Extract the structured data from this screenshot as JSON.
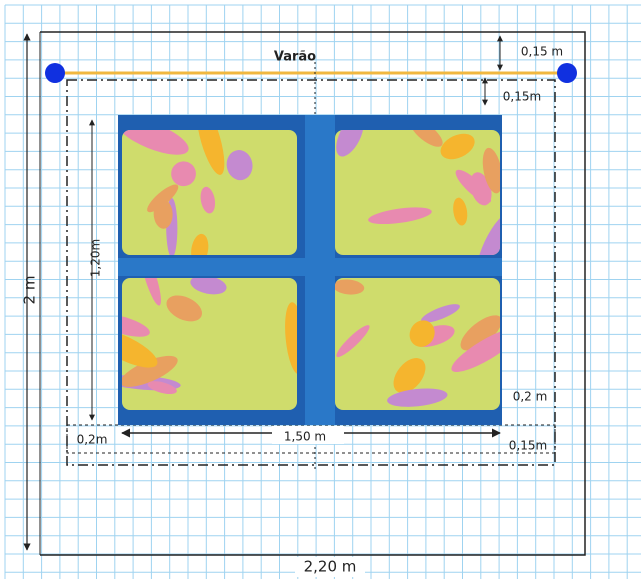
{
  "rod_label": "Varão",
  "dimensions": {
    "rod_to_top": "0,15 m",
    "rod_to_frame": "0,15m",
    "window_height": "1,20m",
    "total_height": "2 m",
    "side_right": "0,2 m",
    "window_width": "1,50 m",
    "side_left": "0,2m",
    "bottom_right": "0,15m",
    "total_width": "2,20 m"
  }
}
